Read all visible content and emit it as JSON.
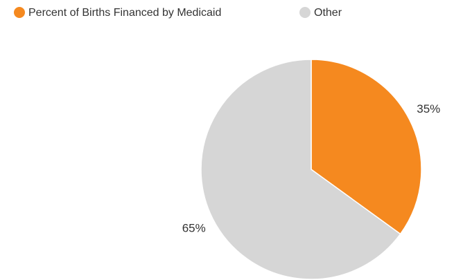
{
  "chart_data": {
    "type": "pie",
    "categories": [
      "Percent of Births Financed by Medicaid",
      "Other"
    ],
    "values": [
      35,
      65
    ],
    "value_labels": [
      "35%",
      "65%"
    ],
    "colors": [
      "#f5891f",
      "#d6d6d6"
    ]
  }
}
